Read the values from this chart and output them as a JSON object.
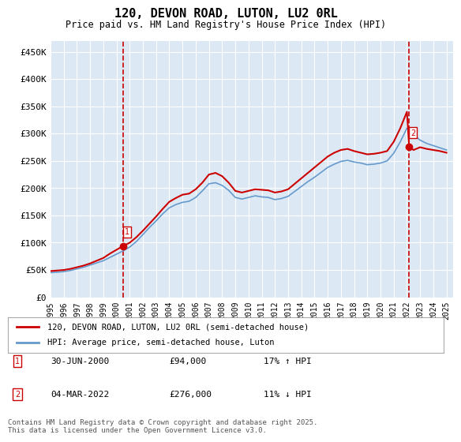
{
  "title": "120, DEVON ROAD, LUTON, LU2 0RL",
  "subtitle": "Price paid vs. HM Land Registry's House Price Index (HPI)",
  "ylabel_ticks": [
    "£0",
    "£50K",
    "£100K",
    "£150K",
    "£200K",
    "£250K",
    "£300K",
    "£350K",
    "£400K",
    "£450K"
  ],
  "ytick_values": [
    0,
    50000,
    100000,
    150000,
    200000,
    250000,
    300000,
    350000,
    400000,
    450000
  ],
  "ylim": [
    0,
    470000
  ],
  "xlim_start": 1995.0,
  "xlim_end": 2025.5,
  "background_color": "#dce9f5",
  "plot_bg_color": "#dce9f5",
  "outer_bg_color": "#ffffff",
  "red_line_color": "#cc0000",
  "blue_line_color": "#6699cc",
  "marker1_x": 2000.5,
  "marker1_y": 94000,
  "marker1_label": "1",
  "marker2_x": 2022.17,
  "marker2_y": 276000,
  "marker2_label": "2",
  "legend_line1": "120, DEVON ROAD, LUTON, LU2 0RL (semi-detached house)",
  "legend_line2": "HPI: Average price, semi-detached house, Luton",
  "note1_label": "1",
  "note1_date": "30-JUN-2000",
  "note1_price": "£94,000",
  "note1_hpi": "17% ↑ HPI",
  "note2_label": "2",
  "note2_date": "04-MAR-2022",
  "note2_price": "£276,000",
  "note2_hpi": "11% ↓ HPI",
  "footer": "Contains HM Land Registry data © Crown copyright and database right 2025.\nThis data is licensed under the Open Government Licence v3.0.",
  "red_years": [
    1995.0,
    1995.5,
    1996.0,
    1996.5,
    1997.0,
    1997.5,
    1998.0,
    1998.5,
    1999.0,
    1999.5,
    2000.0,
    2000.5,
    2001.0,
    2001.5,
    2002.0,
    2002.5,
    2003.0,
    2003.5,
    2004.0,
    2004.5,
    2005.0,
    2005.5,
    2006.0,
    2006.5,
    2007.0,
    2007.5,
    2008.0,
    2008.5,
    2009.0,
    2009.5,
    2010.0,
    2010.5,
    2011.0,
    2011.5,
    2012.0,
    2012.5,
    2013.0,
    2013.5,
    2014.0,
    2014.5,
    2015.0,
    2015.5,
    2016.0,
    2016.5,
    2017.0,
    2017.5,
    2018.0,
    2018.5,
    2019.0,
    2019.5,
    2020.0,
    2020.5,
    2021.0,
    2021.5,
    2022.0,
    2022.17,
    2022.5,
    2023.0,
    2023.5,
    2024.0,
    2024.5,
    2025.0
  ],
  "red_values": [
    48000,
    49000,
    50000,
    52000,
    55000,
    58000,
    62000,
    67000,
    72000,
    80000,
    87000,
    94000,
    100000,
    110000,
    122000,
    135000,
    148000,
    162000,
    175000,
    182000,
    188000,
    190000,
    198000,
    210000,
    225000,
    228000,
    222000,
    210000,
    195000,
    192000,
    195000,
    198000,
    197000,
    196000,
    192000,
    194000,
    198000,
    208000,
    218000,
    228000,
    238000,
    248000,
    258000,
    265000,
    270000,
    272000,
    268000,
    265000,
    262000,
    263000,
    265000,
    268000,
    285000,
    310000,
    340000,
    276000,
    270000,
    275000,
    272000,
    270000,
    268000,
    265000
  ],
  "blue_years": [
    1995.0,
    1995.5,
    1996.0,
    1996.5,
    1997.0,
    1997.5,
    1998.0,
    1998.5,
    1999.0,
    1999.5,
    2000.0,
    2000.5,
    2001.0,
    2001.5,
    2002.0,
    2002.5,
    2003.0,
    2003.5,
    2004.0,
    2004.5,
    2005.0,
    2005.5,
    2006.0,
    2006.5,
    2007.0,
    2007.5,
    2008.0,
    2008.5,
    2009.0,
    2009.5,
    2010.0,
    2010.5,
    2011.0,
    2011.5,
    2012.0,
    2012.5,
    2013.0,
    2013.5,
    2014.0,
    2014.5,
    2015.0,
    2015.5,
    2016.0,
    2016.5,
    2017.0,
    2017.5,
    2018.0,
    2018.5,
    2019.0,
    2019.5,
    2020.0,
    2020.5,
    2021.0,
    2021.5,
    2022.0,
    2022.5,
    2023.0,
    2023.5,
    2024.0,
    2024.5,
    2025.0
  ],
  "blue_values": [
    45000,
    46000,
    47000,
    49000,
    52000,
    55000,
    59000,
    63000,
    67000,
    73000,
    79000,
    85000,
    92000,
    102000,
    115000,
    128000,
    140000,
    153000,
    164000,
    170000,
    174000,
    176000,
    183000,
    195000,
    208000,
    210000,
    205000,
    196000,
    183000,
    180000,
    183000,
    186000,
    184000,
    183000,
    179000,
    181000,
    185000,
    194000,
    203000,
    212000,
    220000,
    229000,
    238000,
    244000,
    249000,
    251000,
    248000,
    246000,
    243000,
    244000,
    246000,
    250000,
    264000,
    285000,
    310000,
    298000,
    288000,
    282000,
    278000,
    274000,
    270000
  ]
}
